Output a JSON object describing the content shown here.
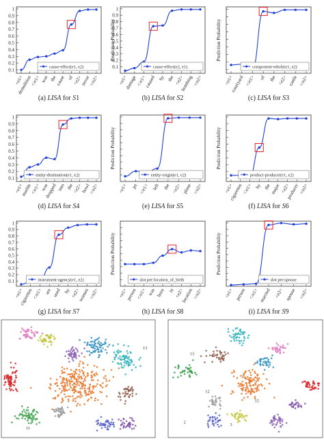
{
  "colors": {
    "line": "#1f3fd6",
    "highlight": "#e8202a",
    "axis": "#333333",
    "grid": "#d0d0d0",
    "cluster_palette": [
      "#2f8fc0",
      "#e8772a",
      "#3aa04a",
      "#d7262a",
      "#8a5fb5",
      "#8c5a48",
      "#e07ac0",
      "#9a9a9a",
      "#c0c230",
      "#2ab0b8"
    ]
  },
  "chart_data": [
    {
      "type": "line",
      "ylabel": "",
      "yticks": [
        "0.1",
        "0.2",
        "0.3",
        "0.4",
        "0.5",
        "0.6",
        "0.7",
        "0.8",
        "0.9",
        "1"
      ],
      "categories": [
        "<e1>",
        "demolition",
        "</e1>",
        "was",
        "the",
        "cause",
        "of",
        "<e2>",
        "terror",
        "</e2>"
      ],
      "series": [
        {
          "name": "cause-effect(e1, e2)",
          "values": [
            0.1,
            0.25,
            0.29,
            0.3,
            0.34,
            0.39,
            0.77,
            0.97,
            0.99,
            0.99
          ]
        }
      ],
      "highlight_index": 6,
      "ylim": [
        0.05,
        1.03
      ],
      "legend": "bottom-right",
      "caption": {
        "prefix": "(a)",
        "lisa": "LISA",
        "mid": " for ",
        "s": "S",
        "num": "1"
      }
    },
    {
      "type": "line",
      "ylabel": "Prediction Probability",
      "yticks": [
        "0.1",
        "0.2",
        "0.3",
        "0.4",
        "0.5",
        "0.6",
        "0.7",
        "0.8",
        "0.9",
        "1"
      ],
      "categories": [
        "<e1>",
        "damage",
        "</e1>",
        "caused",
        "by",
        "the",
        "<e2>",
        "bombing",
        "</e2>"
      ],
      "series": [
        {
          "name": "cause-effect(e2, e1)",
          "values": [
            0.04,
            0.08,
            0.18,
            0.73,
            0.74,
            0.97,
            0.99,
            0.99,
            0.99
          ]
        }
      ],
      "highlight_index": 3,
      "ylim": [
        0.0,
        1.03
      ],
      "legend": "bottom-right",
      "caption": {
        "prefix": "(b)",
        "lisa": "LISA",
        "mid": " for ",
        "s": "S",
        "num": "2"
      }
    },
    {
      "type": "line",
      "ylabel": "Prediction Probability",
      "yticks": [],
      "categories": [
        "<e1>",
        "courtyard",
        "</e1>",
        "of",
        "the",
        "<e2>",
        "castle",
        "</e2>"
      ],
      "series": [
        {
          "name": "component-whole(e1, e2)",
          "values": [
            0.26,
            0.27,
            0.21,
            0.97,
            0.95,
            0.99,
            0.99,
            0.99
          ]
        }
      ],
      "highlight_index": 3,
      "ylim": [
        0.15,
        1.03
      ],
      "legend": "bottom-right",
      "caption": {
        "prefix": "(c)",
        "lisa": "LISA",
        "mid": " for ",
        "s": "S",
        "num": "3"
      }
    },
    {
      "type": "line",
      "ylabel": "",
      "yticks": [
        "0.1",
        "0.2",
        "0.3",
        "0.4",
        "0.5",
        "0.6",
        "0.7",
        "0.8",
        "0.9",
        "1"
      ],
      "categories": [
        "<e1>",
        "marble",
        "</e1>",
        "was",
        "dropped",
        "into",
        "the",
        "<e2>",
        "bowl",
        "</e2>"
      ],
      "series": [
        {
          "name": "entity-destination(e1, e2)",
          "values": [
            0.12,
            0.26,
            0.3,
            0.4,
            0.38,
            0.89,
            0.98,
            0.99,
            0.99,
            0.99
          ]
        }
      ],
      "highlight_index": 5,
      "ylim": [
        0.05,
        1.03
      ],
      "legend": "bottom-right",
      "caption": {
        "prefix": "(d)",
        "lisa": "LISA",
        "mid": " for ",
        "s": "S",
        "num": "4"
      }
    },
    {
      "type": "line",
      "ylabel": "Prediction Probability",
      "yticks": [],
      "categories": [
        "<e1>",
        "jet",
        "</e1>",
        "left",
        "the",
        "<e2>",
        "plane",
        "</e2>"
      ],
      "series": [
        {
          "name": "entity-origin(e1, e2)",
          "values": [
            0.08,
            0.16,
            0.14,
            0.2,
            0.98,
            0.99,
            0.99,
            0.99
          ]
        }
      ],
      "highlight_index": 4,
      "ylim": [
        0.0,
        1.03
      ],
      "legend": "bottom-right",
      "caption": {
        "prefix": "(e)",
        "lisa": "LISA",
        "mid": " for ",
        "s": "S",
        "num": "5"
      }
    },
    {
      "type": "line",
      "ylabel": "Prediction Probability",
      "yticks": [],
      "categories": [
        "<e1>",
        "cigarettes",
        "</e1>",
        "by",
        "the",
        "major",
        "<e2>",
        "producer",
        "</e2>"
      ],
      "series": [
        {
          "name": "product-producer(e1, e2)",
          "values": [
            0.14,
            0.14,
            0.12,
            0.55,
            0.98,
            0.97,
            0.98,
            0.98,
            0.98
          ]
        }
      ],
      "highlight_index": 3,
      "ylim": [
        0.05,
        1.03
      ],
      "legend": "bottom-right",
      "caption": {
        "prefix": "(f)",
        "lisa": "LISA",
        "mid": " for ",
        "s": "S",
        "num": "6"
      }
    },
    {
      "type": "line",
      "ylabel": "",
      "yticks": [
        "0.1",
        "0.2",
        "0.3",
        "0.4",
        "0.5",
        "0.6",
        "0.7",
        "0.8",
        "0.9",
        "1"
      ],
      "categories": [
        "<e1>",
        "cigarettes",
        "</e1>",
        "are",
        "used",
        "by",
        "<e2>",
        "women",
        "</e2>"
      ],
      "series": [
        {
          "name": "instrument-agency(e1, e2)",
          "values": [
            0.05,
            0.09,
            0.11,
            0.31,
            0.82,
            0.93,
            0.97,
            0.98,
            0.98
          ]
        }
      ],
      "highlight_index": 4,
      "ylim": [
        0.02,
        1.03
      ],
      "legend": "bottom-right",
      "caption": {
        "prefix": "(g)",
        "lisa": "LISA",
        "mid": " for ",
        "s": "S",
        "num": "7"
      }
    },
    {
      "type": "line",
      "ylabel": "Prediction Probability",
      "yticks": [],
      "categories": [
        "<e1>",
        "person",
        "</e1>",
        "was",
        "born",
        "in",
        "<e2>",
        "location",
        "</e2>"
      ],
      "series": [
        {
          "name": "slot per:location_of_birth",
          "values": [
            0.34,
            0.34,
            0.34,
            0.36,
            0.47,
            0.57,
            0.52,
            0.55,
            0.54
          ]
        }
      ],
      "highlight_index": 5,
      "ylim": [
        0.0,
        1.0
      ],
      "legend": "bottom-right",
      "caption": {
        "prefix": "(h)",
        "lisa": "LISA",
        "mid": " for ",
        "s": "S",
        "num": "8"
      }
    },
    {
      "type": "line",
      "ylabel": "Prediction Probability",
      "yticks": [],
      "categories": [
        "<e1>",
        "person",
        "</e1>",
        "married",
        "<e2>",
        "spouse",
        "</e2>"
      ],
      "series": [
        {
          "name": "slot per:spouse",
          "values": [
            0.02,
            0.03,
            0.04,
            0.97,
            1.0,
            0.98,
            0.99
          ]
        }
      ],
      "highlight_index": 3,
      "ylim": [
        0.0,
        1.03
      ],
      "legend": "bottom-right",
      "caption": {
        "prefix": "(i)",
        "lisa": "LISA",
        "mid": " for ",
        "s": "S",
        "num": "9"
      }
    },
    {
      "type": "scatter",
      "labels_shown": [
        "13",
        "11"
      ],
      "clusters": [
        {
          "color": "#d7262a",
          "center": [
            0.06,
            0.52
          ],
          "spread": [
            0.04,
            0.1
          ],
          "n": 70
        },
        {
          "color": "#e8772a",
          "center": [
            0.5,
            0.55
          ],
          "spread": [
            0.16,
            0.14
          ],
          "n": 260
        },
        {
          "color": "#2f8fc0",
          "center": [
            0.62,
            0.22
          ],
          "spread": [
            0.07,
            0.07
          ],
          "n": 70
        },
        {
          "color": "#2ab0b8",
          "center": [
            0.8,
            0.33
          ],
          "spread": [
            0.07,
            0.1
          ],
          "n": 70
        },
        {
          "color": "#3aa04a",
          "center": [
            0.18,
            0.82
          ],
          "spread": [
            0.07,
            0.07
          ],
          "n": 60
        },
        {
          "color": "#8a5fb5",
          "center": [
            0.46,
            0.3
          ],
          "spread": [
            0.05,
            0.05
          ],
          "n": 45
        },
        {
          "color": "#8c5a48",
          "center": [
            0.82,
            0.62
          ],
          "spread": [
            0.05,
            0.06
          ],
          "n": 40
        },
        {
          "color": "#e07ac0",
          "center": [
            0.18,
            0.12
          ],
          "spread": [
            0.06,
            0.05
          ],
          "n": 45
        },
        {
          "color": "#9a9a9a",
          "center": [
            0.38,
            0.78
          ],
          "spread": [
            0.05,
            0.05
          ],
          "n": 35
        },
        {
          "color": "#c0c230",
          "center": [
            0.3,
            0.16
          ],
          "spread": [
            0.05,
            0.04
          ],
          "n": 35
        },
        {
          "color": "#5560c8",
          "center": [
            0.68,
            0.88
          ],
          "spread": [
            0.06,
            0.05
          ],
          "n": 45
        },
        {
          "color": "#7d4fa6",
          "center": [
            0.82,
            0.88
          ],
          "spread": [
            0.05,
            0.05
          ],
          "n": 35
        }
      ]
    },
    {
      "type": "scatter",
      "labels_shown": [
        "13",
        "15",
        "12",
        "2",
        "3"
      ],
      "clusters": [
        {
          "color": "#2ab0b8",
          "center": [
            0.46,
            0.14
          ],
          "spread": [
            0.06,
            0.06
          ],
          "n": 45
        },
        {
          "color": "#8c5a48",
          "center": [
            0.32,
            0.3
          ],
          "spread": [
            0.08,
            0.05
          ],
          "n": 40
        },
        {
          "color": "#3aa04a",
          "center": [
            0.12,
            0.44
          ],
          "spread": [
            0.06,
            0.05
          ],
          "n": 40
        },
        {
          "color": "#e8772a",
          "center": [
            0.52,
            0.55
          ],
          "spread": [
            0.1,
            0.12
          ],
          "n": 120
        },
        {
          "color": "#d7262a",
          "center": [
            0.92,
            0.55
          ],
          "spread": [
            0.05,
            0.04
          ],
          "n": 40
        },
        {
          "color": "#2f8fc0",
          "center": [
            0.62,
            0.36
          ],
          "spread": [
            0.05,
            0.05
          ],
          "n": 35
        },
        {
          "color": "#8a5fb5",
          "center": [
            0.7,
            0.86
          ],
          "spread": [
            0.05,
            0.05
          ],
          "n": 40
        },
        {
          "color": "#e07ac0",
          "center": [
            0.72,
            0.24
          ],
          "spread": [
            0.05,
            0.04
          ],
          "n": 30
        },
        {
          "color": "#9a9a9a",
          "center": [
            0.3,
            0.7
          ],
          "spread": [
            0.05,
            0.04
          ],
          "n": 30
        },
        {
          "color": "#5560c8",
          "center": [
            0.3,
            0.85
          ],
          "spread": [
            0.05,
            0.05
          ],
          "n": 35
        },
        {
          "color": "#c0c230",
          "center": [
            0.46,
            0.82
          ],
          "spread": [
            0.05,
            0.05
          ],
          "n": 30
        },
        {
          "color": "#7d4fa6",
          "center": [
            0.82,
            0.72
          ],
          "spread": [
            0.04,
            0.04
          ],
          "n": 25
        }
      ]
    }
  ]
}
